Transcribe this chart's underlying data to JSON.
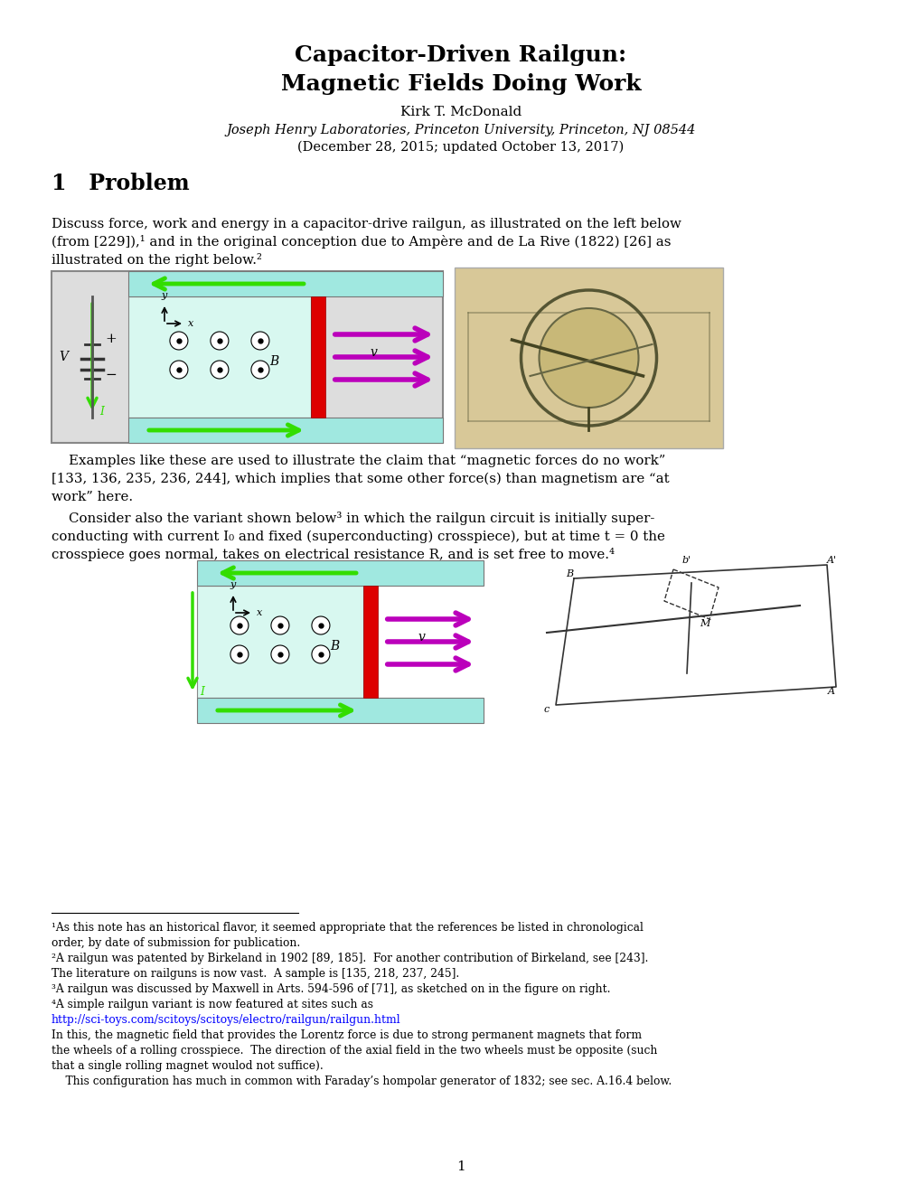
{
  "title_line1": "Capacitor-Driven Railgun:",
  "title_line2": "Magnetic Fields Doing Work",
  "author": "Kirk T. McDonald",
  "institution": "Joseph Henry Laboratories, Princeton University, Princeton, NJ 08544",
  "date": "(December 28, 2015; updated October 13, 2017)",
  "section": "1   Problem",
  "bg_color": "#ffffff",
  "text_color": "#000000",
  "link_color": "#0000ff",
  "page_number": "1",
  "rail_color": "#a0e8e0",
  "rail_edge_color": "#777777",
  "cross_color": "#dd0000",
  "green_arrow_color": "#33dd00",
  "purple_arrow_color": "#bb00bb",
  "inner_bg_color": "#d8f8f0"
}
